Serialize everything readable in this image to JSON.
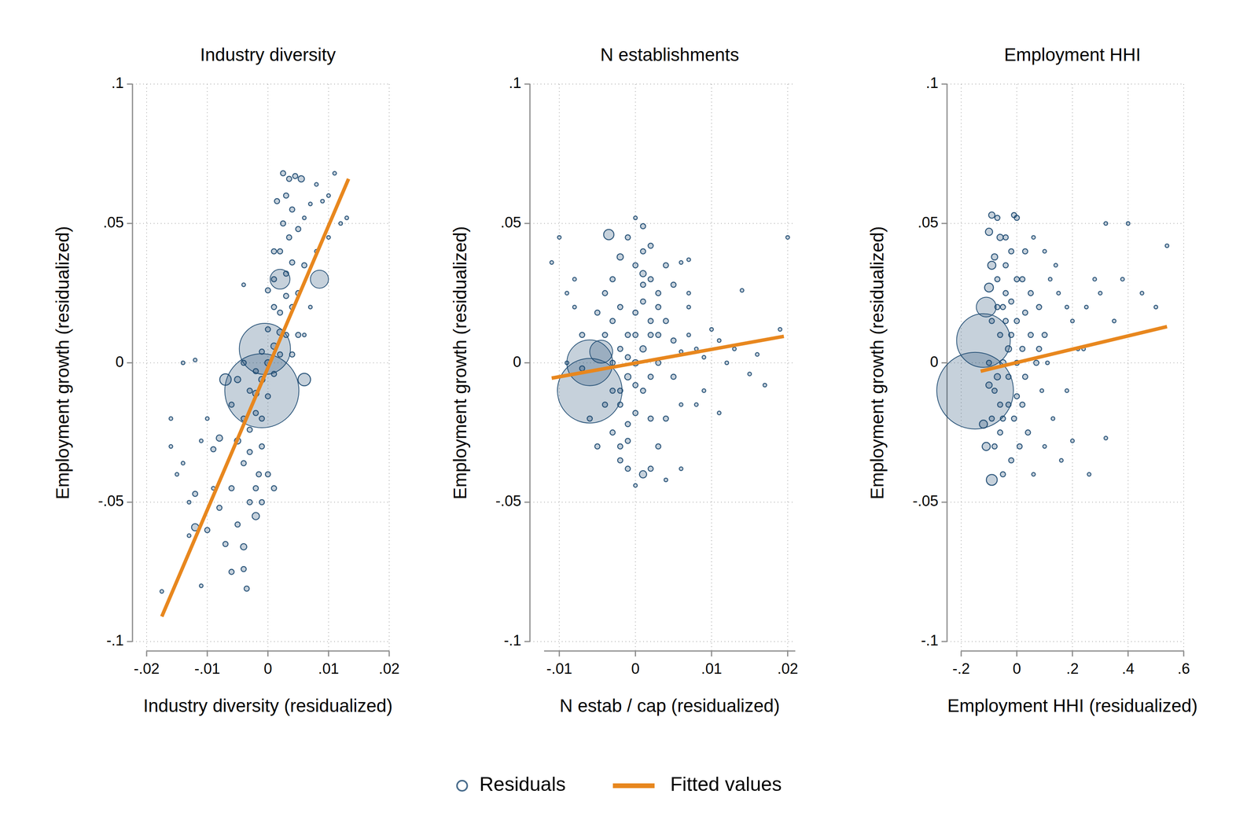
{
  "chart_data": [
    {
      "type": "scatter",
      "title": "Industry diversity",
      "x_label": "Industry diversity (residualized)",
      "y_label": "Employment growth (residualized)",
      "xlim": [
        -0.02,
        0.02
      ],
      "ylim": [
        -0.1,
        0.1
      ],
      "xticks": [
        {
          "value": -0.02,
          "label": "-.02"
        },
        {
          "value": -0.01,
          "label": "-.01"
        },
        0,
        {
          "value": 0.01,
          "label": ".01"
        },
        {
          "value": 0.02,
          "label": ".02"
        }
      ],
      "yticks": [
        {
          "value": -0.1,
          "label": "-.1"
        },
        {
          "value": -0.05,
          "label": "-.05"
        },
        0,
        {
          "value": 0.05,
          "label": ".05"
        },
        {
          "value": 0.1,
          "label": ".1"
        }
      ],
      "grid": true,
      "legend": "bottom",
      "series": [
        {
          "name": "Residuals",
          "type": "scatter",
          "marker": "hollow-circle",
          "color": "#1a476f",
          "x": [
            0,
            0.001,
            -0.001,
            0.002,
            -0.002,
            0.002,
            -0.002,
            0.003,
            -0.003,
            0.001,
            -0.001,
            0,
            0,
            0.001,
            -0.001,
            0.002,
            -0.002,
            0.003,
            -0.003,
            0.003,
            -0.003,
            0.004,
            -0.004,
            0.002,
            0.001,
            -0.001,
            0.004,
            -0.004,
            0.0035,
            0.0025,
            0.004,
            0.003,
            0.0025,
            0.0035,
            0.0045,
            0.0055,
            0.005,
            0.006,
            0.007,
            0.009,
            0.011,
            0.013,
            0.012,
            0.01,
            0.008,
            0.0085,
            0.006,
            0.005,
            0.005,
            0.006,
            -0.001,
            -0.0005,
            0.002,
            -0.007,
            -0.005,
            -0.006,
            -0.008,
            -0.01,
            -0.012,
            -0.011,
            -0.013,
            -0.015,
            -0.016,
            -0.0175,
            -0.014,
            -0.012,
            -0.009,
            -0.008,
            -0.006,
            -0.004,
            -0.0035,
            -0.004,
            -0.005,
            -0.002,
            -0.001,
            0.001,
            0,
            -0.002,
            -0.003,
            -0.007,
            -0.006,
            -0.009,
            -0.004,
            -0.012,
            -0.014,
            -0.004,
            -0.005,
            0.004,
            0.006,
            0.007,
            0.01,
            0.008,
            -0.01,
            -0.011,
            -0.013,
            -0.016,
            0,
            0.001,
            0.0015,
            -0.0015
          ],
          "values": [
            0,
            0.006,
            -0.006,
            0.011,
            -0.011,
            0.018,
            -0.018,
            0.024,
            -0.024,
            0.02,
            -0.02,
            0.012,
            -0.012,
            -0.004,
            0.004,
            0.003,
            -0.003,
            0.01,
            -0.01,
            0.032,
            -0.032,
            0.036,
            -0.036,
            0.04,
            0.03,
            -0.03,
            0.02,
            -0.02,
            0.045,
            0.05,
            0.055,
            0.06,
            0.068,
            0.066,
            0.067,
            0.066,
            0.048,
            0.052,
            0.057,
            0.058,
            0.068,
            0.052,
            0.05,
            0.045,
            0.04,
            0.03,
            0.035,
            0.025,
            0.01,
            -0.006,
            -0.01,
            0.005,
            0.03,
            -0.006,
            -0.028,
            -0.045,
            -0.052,
            -0.06,
            -0.059,
            -0.08,
            -0.062,
            -0.04,
            -0.02,
            -0.082,
            -0.036,
            -0.047,
            -0.031,
            -0.027,
            -0.015,
            -0.066,
            -0.081,
            -0.074,
            -0.058,
            -0.055,
            -0.05,
            -0.045,
            -0.04,
            -0.045,
            -0.05,
            -0.065,
            -0.075,
            -0.045,
            0.028,
            0.001,
            0,
            0,
            -0.006,
            0.003,
            0.01,
            0.02,
            0.06,
            0.064,
            -0.02,
            -0.028,
            -0.05,
            -0.03,
            0.026,
            0.04,
            0.058,
            -0.04
          ],
          "sizes": [
            3,
            3,
            3,
            3,
            3,
            2,
            2,
            2,
            2,
            2,
            2,
            2,
            2,
            2,
            2,
            2,
            2,
            2,
            2,
            2,
            2,
            2,
            2,
            2,
            2,
            2,
            2,
            2,
            2,
            2,
            2,
            2,
            2,
            2,
            2,
            3,
            2,
            1,
            1,
            1,
            1,
            1,
            1,
            1,
            1,
            25,
            2,
            2,
            2,
            12,
            420,
            200,
            30,
            10,
            3,
            2,
            2,
            2,
            4,
            1,
            1,
            1,
            1,
            1,
            1,
            2,
            2,
            3,
            2,
            3,
            2,
            2,
            2,
            4,
            2,
            2,
            2,
            2,
            2,
            2,
            2,
            1,
            1,
            1,
            1,
            2,
            3,
            2,
            1,
            1,
            1,
            1,
            1,
            1,
            1,
            1,
            2,
            2,
            2,
            2
          ]
        },
        {
          "name": "Fitted values",
          "type": "line",
          "color": "#e8871e",
          "x": [
            -0.0175,
            0.0133
          ],
          "values": [
            -0.091,
            0.066
          ]
        }
      ]
    },
    {
      "type": "scatter",
      "title": "N establishments",
      "x_label": "N estab / cap (residualized)",
      "y_label": "Employment growth (residualized)",
      "xlim": [
        -0.012,
        0.021
      ],
      "ylim": [
        -0.1,
        0.1
      ],
      "xticks": [
        {
          "value": -0.01,
          "label": "-.01"
        },
        0,
        {
          "value": 0.01,
          "label": ".01"
        },
        {
          "value": 0.02,
          "label": ".02"
        }
      ],
      "yticks": [
        {
          "value": -0.1,
          "label": "-.1"
        },
        {
          "value": -0.05,
          "label": "-.05"
        },
        0,
        {
          "value": 0.05,
          "label": ".05"
        },
        {
          "value": 0.1,
          "label": ".1"
        }
      ],
      "grid": true,
      "series": [
        {
          "name": "Residuals",
          "type": "scatter",
          "marker": "hollow-circle",
          "color": "#1a476f",
          "x": [
            0,
            0.001,
            -0.001,
            0.002,
            -0.002,
            0.001,
            -0.001,
            0.002,
            -0.002,
            0.003,
            -0.003,
            0,
            0,
            0.001,
            -0.001,
            0.002,
            -0.002,
            0.003,
            -0.003,
            0.001,
            -0.001,
            0.002,
            -0.002,
            0,
            0.001,
            -0.001,
            0,
            0.001,
            -0.0035,
            -0.002,
            0.002,
            0.004,
            0.006,
            0.007,
            0.003,
            0.004,
            0.005,
            0.006,
            0.007,
            0.008,
            0.009,
            0.01,
            0.011,
            0.012,
            0.013,
            0.015,
            0.016,
            0.017,
            0.019,
            0.02,
            0.014,
            0.009,
            0.006,
            0.004,
            0.003,
            0.002,
            0.001,
            -0.001,
            0,
            0.004,
            0.006,
            -0.006,
            -0.006,
            -0.0045,
            -0.003,
            -0.004,
            -0.005,
            -0.006,
            -0.007,
            -0.008,
            -0.009,
            -0.011,
            -0.01,
            -0.008,
            -0.007,
            -0.009,
            -0.003,
            -0.004,
            -0.002,
            -0.003,
            -0.004,
            0.003,
            0.002,
            0.005,
            0.008,
            0.011,
            0.007,
            -0.005,
            -0.002,
            0.001,
            -0.001,
            0,
            0,
            0.005,
            0.007
          ],
          "values": [
            0,
            0.005,
            -0.005,
            0.01,
            -0.01,
            -0.01,
            0.01,
            -0.005,
            0.005,
            0,
            0,
            0.018,
            -0.018,
            0.022,
            -0.022,
            0.015,
            -0.015,
            0.01,
            -0.01,
            0.028,
            -0.028,
            0.03,
            -0.03,
            0.035,
            0.04,
            0.045,
            0.052,
            0.049,
            0.046,
            0.038,
            0.042,
            0.035,
            0.036,
            0.037,
            0.025,
            0.015,
            0.008,
            0.004,
            0.01,
            0.005,
            0.002,
            0.012,
            0.008,
            0,
            0.005,
            -0.004,
            0.003,
            -0.008,
            0.012,
            0.045,
            0.026,
            -0.01,
            -0.015,
            -0.02,
            -0.03,
            -0.038,
            -0.04,
            -0.038,
            -0.044,
            -0.042,
            -0.038,
            -0.01,
            0,
            0.004,
            -0.025,
            -0.015,
            -0.03,
            -0.02,
            0.01,
            0.02,
            0.025,
            0.036,
            0.045,
            0.03,
            -0.002,
            0,
            0.03,
            0.025,
            0.02,
            0.015,
            0.01,
            0.02,
            -0.02,
            -0.005,
            -0.015,
            -0.018,
            0.02,
            0.018,
            -0.035,
            0.032,
            0.002,
            0.01,
            -0.008,
            0.028,
            0.025
          ],
          "sizes": [
            3,
            3,
            3,
            2,
            2,
            2,
            2,
            2,
            2,
            2,
            2,
            2,
            2,
            2,
            2,
            2,
            2,
            2,
            2,
            2,
            2,
            2,
            2,
            2,
            2,
            2,
            1,
            2,
            8,
            3,
            2,
            2,
            1,
            1,
            2,
            2,
            2,
            1,
            1,
            1,
            1,
            1,
            1,
            1,
            1,
            1,
            1,
            1,
            1,
            1,
            1,
            1,
            1,
            2,
            2,
            2,
            4,
            2,
            1,
            1,
            1,
            320,
            160,
            40,
            2,
            2,
            2,
            2,
            2,
            1,
            1,
            1,
            1,
            1,
            2,
            1,
            2,
            2,
            2,
            2,
            2,
            2,
            2,
            2,
            1,
            1,
            1,
            2,
            2,
            3,
            2,
            2,
            2,
            2,
            1
          ]
        },
        {
          "name": "Fitted values",
          "type": "line",
          "color": "#e8871e",
          "x": [
            -0.011,
            0.0195
          ],
          "values": [
            -0.0055,
            0.0095
          ]
        }
      ]
    },
    {
      "type": "scatter",
      "title": "Employment HHI",
      "x_label": "Employment HHI (residualized)",
      "y_label": "Employment growth (residualized)",
      "xlim": [
        -0.2,
        0.6
      ],
      "ylim": [
        -0.1,
        0.1
      ],
      "xticks": [
        {
          "value": -0.2,
          "label": "-.2"
        },
        0,
        {
          "value": 0.2,
          "label": ".2"
        },
        {
          "value": 0.4,
          "label": ".4"
        },
        {
          "value": 0.6,
          "label": ".6"
        }
      ],
      "yticks": [
        {
          "value": -0.1,
          "label": "-.1"
        },
        {
          "value": -0.05,
          "label": "-.05"
        },
        0,
        {
          "value": 0.05,
          "label": ".05"
        },
        {
          "value": 0.1,
          "label": ".1"
        }
      ],
      "grid": true,
      "series": [
        {
          "name": "Residuals",
          "type": "scatter",
          "marker": "hollow-circle",
          "color": "#1a476f",
          "x": [
            -0.05,
            -0.03,
            -0.07,
            -0.02,
            -0.08,
            -0.04,
            -0.06,
            0,
            -0.1,
            -0.05,
            -0.05,
            0,
            0,
            -0.09,
            -0.09,
            -0.04,
            -0.06,
            0.02,
            0.03,
            -0.07,
            -0.08,
            -0.06,
            -0.07,
            0,
            -0.02,
            -0.04,
            0.02,
            0.05,
            0.08,
            0.1,
            0.12,
            0.15,
            0.18,
            0.2,
            0.22,
            0.25,
            0.28,
            0.3,
            0.32,
            0.35,
            0.4,
            0.45,
            0.5,
            0.54,
            0.13,
            0.16,
            0.18,
            0.2,
            0.26,
            0.32,
            0.1,
            0.06,
            0.04,
            0.01,
            -0.02,
            -0.05,
            -0.09,
            -0.11,
            -0.12,
            -0.15,
            -0.12,
            -0.11,
            -0.1,
            -0.09,
            -0.1,
            -0.09,
            -0.01,
            -0.04,
            0.06,
            0.1,
            0.14,
            0.05,
            0.07,
            0.03,
            0.09,
            -0.03,
            -0.01,
            0.02,
            -0.08,
            -0.06,
            -0.03,
            0,
            -0.1,
            0.08,
            0.11,
            0.24,
            0.38,
            0.03,
            -0.07,
            -0.02
          ],
          "values": [
            0,
            0.005,
            -0.005,
            0.01,
            -0.01,
            0.015,
            -0.015,
            0,
            0,
            0.02,
            -0.02,
            0.015,
            -0.012,
            0.015,
            -0.02,
            0.025,
            -0.025,
            0.005,
            -0.005,
            0.03,
            0.038,
            0.045,
            0.052,
            0.052,
            0.04,
            0.035,
            0.03,
            0.025,
            0.02,
            0.01,
            0.03,
            0.025,
            0.02,
            0.015,
            0.005,
            0.02,
            0.03,
            0.025,
            0.05,
            0.015,
            0.05,
            0.025,
            0.02,
            0.042,
            -0.02,
            -0.035,
            -0.01,
            -0.028,
            -0.04,
            -0.027,
            -0.03,
            -0.04,
            -0.025,
            -0.03,
            -0.035,
            -0.04,
            -0.042,
            -0.03,
            -0.022,
            -0.01,
            0.008,
            0.02,
            0.027,
            0.035,
            0.047,
            0.053,
            0.053,
            0.045,
            0.045,
            0.04,
            0.035,
            0.01,
            0,
            0.018,
            -0.01,
            -0.015,
            -0.02,
            -0.015,
            -0.03,
            0.01,
            -0.005,
            0.03,
            -0.008,
            0.005,
            0,
            0.005,
            0.03,
            0.04,
            0.02,
            0.022
          ],
          "sizes": [
            3,
            3,
            3,
            2,
            2,
            2,
            2,
            2,
            2,
            2,
            2,
            2,
            2,
            2,
            2,
            2,
            2,
            2,
            2,
            2,
            3,
            3,
            2,
            2,
            2,
            2,
            2,
            2,
            2,
            2,
            1,
            1,
            1,
            1,
            1,
            1,
            1,
            1,
            1,
            1,
            1,
            1,
            1,
            1,
            1,
            1,
            1,
            1,
            1,
            1,
            1,
            1,
            2,
            2,
            2,
            2,
            9,
            5,
            5,
            450,
            220,
            30,
            6,
            5,
            4,
            3,
            2,
            2,
            1,
            1,
            1,
            2,
            2,
            2,
            1,
            2,
            2,
            2,
            2,
            2,
            2,
            2,
            3,
            2,
            1,
            1,
            1,
            2,
            2,
            2
          ]
        },
        {
          "name": "Fitted values",
          "type": "line",
          "color": "#e8871e",
          "x": [
            -0.13,
            0.54
          ],
          "values": [
            -0.003,
            0.013
          ]
        }
      ]
    }
  ]
}
